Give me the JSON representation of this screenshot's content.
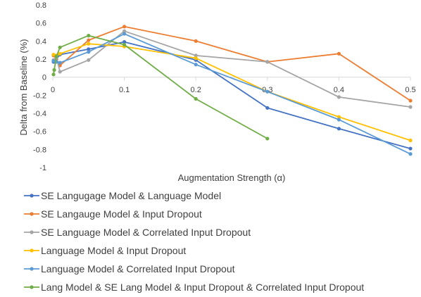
{
  "chart_data": {
    "type": "line",
    "title": "",
    "xlabel": "Augmentation Strength (α)",
    "ylabel": "Delta from Baseline (%)",
    "xlim": [
      0,
      0.5
    ],
    "ylim": [
      -1,
      0.8
    ],
    "xticks": [
      0,
      0.1,
      0.2,
      0.3,
      0.4,
      0.5
    ],
    "xtick_labels": [
      "0",
      "0.1",
      "0.2",
      "0.3",
      "0.4",
      "0.5"
    ],
    "yticks": [
      0.8,
      0.6,
      0.4,
      0.2,
      0,
      -0.2,
      -0.4,
      -0.6,
      -0.8,
      -1
    ],
    "ytick_labels": [
      "0.8",
      "0.6",
      "0.4",
      "0.2",
      "0",
      "-0.2",
      "-0.4",
      "-0.6",
      "-0.8",
      "-1"
    ],
    "grid": false,
    "legend_position": "bottom",
    "series": [
      {
        "name": "SE Langugage Model & Language Model",
        "color": "#4472C4",
        "points": [
          [
            0.001,
            0.17
          ],
          [
            0.005,
            0.2
          ],
          [
            0.01,
            0.25
          ],
          [
            0.05,
            0.31
          ],
          [
            0.1,
            0.39
          ],
          [
            0.2,
            0.19
          ],
          [
            0.3,
            -0.34
          ],
          [
            0.4,
            -0.57
          ],
          [
            0.5,
            -0.79
          ]
        ]
      },
      {
        "name": "SE Langauge Model & Input Dropout",
        "color": "#ED7D31",
        "points": [
          [
            0.001,
            0.24
          ],
          [
            0.005,
            0.2
          ],
          [
            0.01,
            0.13
          ],
          [
            0.05,
            0.41
          ],
          [
            0.1,
            0.56
          ],
          [
            0.2,
            0.4
          ],
          [
            0.3,
            0.17
          ],
          [
            0.4,
            0.26
          ],
          [
            0.5,
            -0.26
          ]
        ]
      },
      {
        "name": "SE Language Model & Correlated Input Dropout",
        "color": "#A5A5A5",
        "points": [
          [
            0.001,
            0.19
          ],
          [
            0.005,
            0.22
          ],
          [
            0.01,
            0.06
          ],
          [
            0.05,
            0.19
          ],
          [
            0.1,
            0.51
          ],
          [
            0.2,
            0.24
          ],
          [
            0.3,
            0.17
          ],
          [
            0.4,
            -0.22
          ],
          [
            0.5,
            -0.33
          ]
        ]
      },
      {
        "name": "Language Model & Input Dropout",
        "color": "#FFC000",
        "points": [
          [
            0.001,
            0.25
          ],
          [
            0.005,
            0.24
          ],
          [
            0.01,
            0.26
          ],
          [
            0.05,
            0.37
          ],
          [
            0.1,
            0.34
          ],
          [
            0.2,
            0.21
          ],
          [
            0.3,
            -0.16
          ],
          [
            0.4,
            -0.44
          ],
          [
            0.5,
            -0.7
          ]
        ]
      },
      {
        "name": "Language Model & Correlated Input Dropout",
        "color": "#5B9BD5",
        "points": [
          [
            0.001,
            0.18
          ],
          [
            0.005,
            0.17
          ],
          [
            0.01,
            0.16
          ],
          [
            0.05,
            0.28
          ],
          [
            0.1,
            0.48
          ],
          [
            0.2,
            0.14
          ],
          [
            0.3,
            -0.16
          ],
          [
            0.4,
            -0.47
          ],
          [
            0.5,
            -0.85
          ]
        ]
      },
      {
        "name": "Lang Model & SE Lang Model & Input Dropout & Correlated Input Dropout",
        "color": "#70AD47",
        "points": [
          [
            0.001,
            0.03
          ],
          [
            0.002,
            0.08
          ],
          [
            0.005,
            0.23
          ],
          [
            0.01,
            0.33
          ],
          [
            0.05,
            0.46
          ],
          [
            0.1,
            0.36
          ],
          [
            0.2,
            -0.24
          ],
          [
            0.3,
            -0.68
          ]
        ]
      }
    ]
  }
}
